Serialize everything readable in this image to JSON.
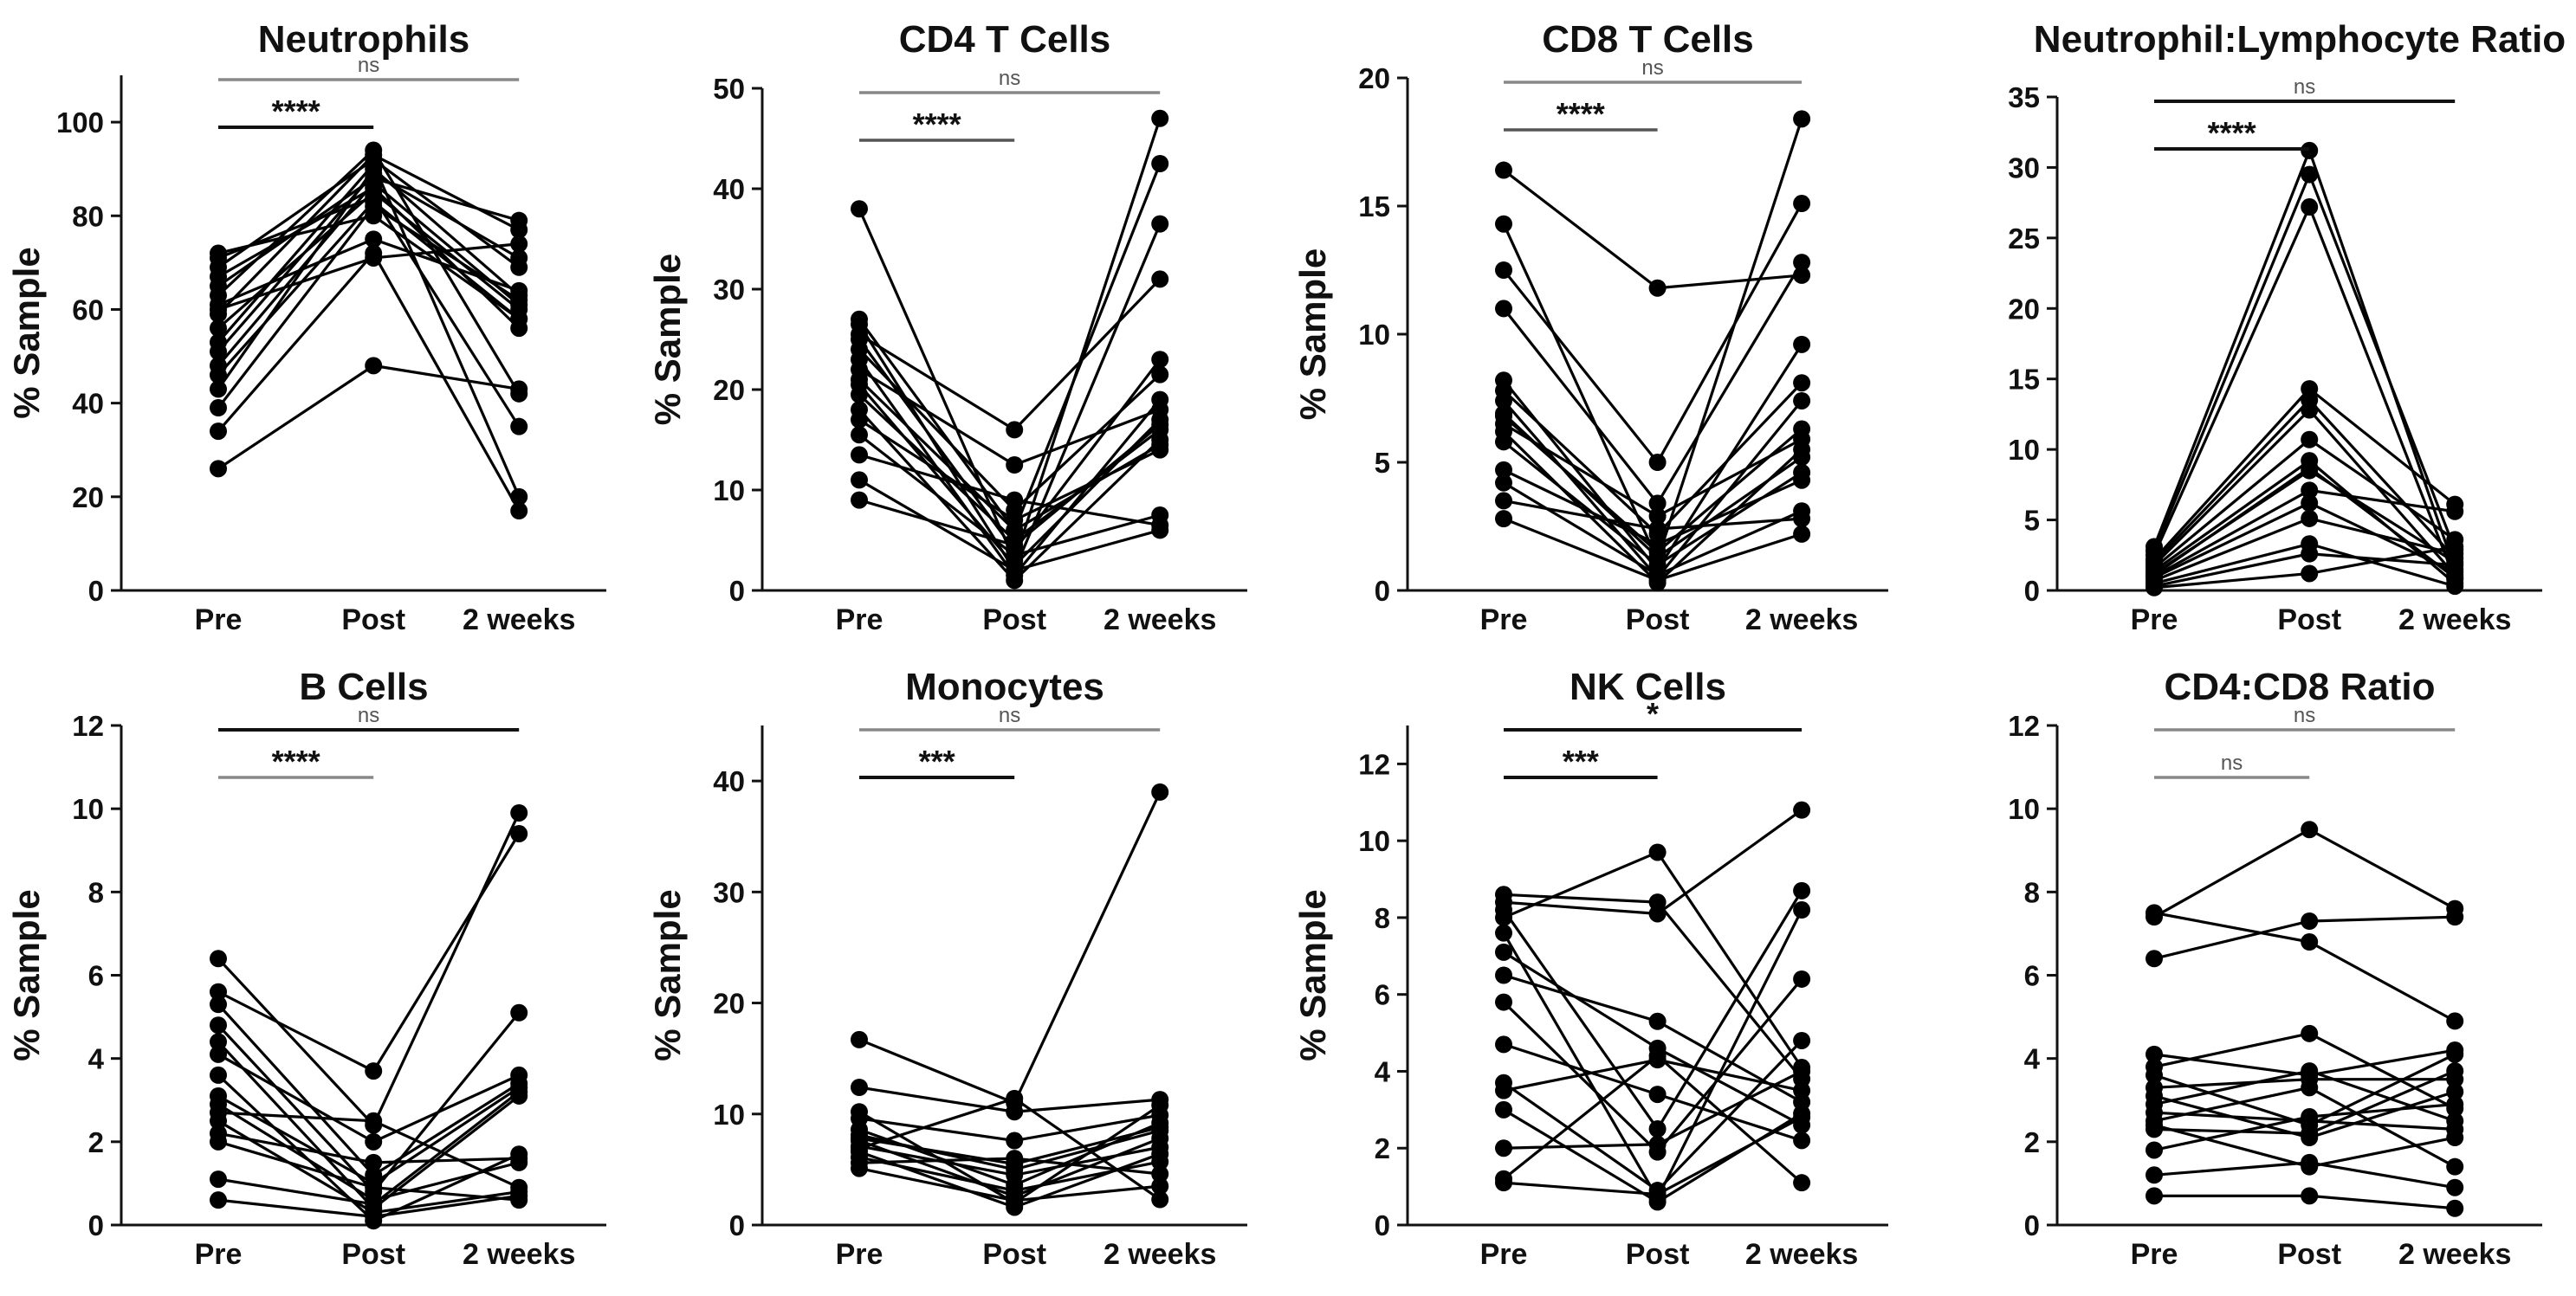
{
  "chart_data": [
    {
      "type": "line",
      "title": "Neutrophils",
      "ylabel": "% Sample",
      "categories": [
        "Pre",
        "Post",
        "2 weeks"
      ],
      "ylim": [
        0,
        110
      ],
      "yticks": [
        0,
        20,
        40,
        60,
        80,
        100
      ],
      "brackets": [
        {
          "from": "Pre",
          "to": "2 weeks",
          "label": "ns",
          "color": "#888888",
          "level": 2
        },
        {
          "from": "Pre",
          "to": "Post",
          "label": "****",
          "color": "#111111",
          "level": 1
        }
      ],
      "series": [
        {
          "values": [
            26,
            48,
            43
          ]
        },
        {
          "values": [
            34,
            72,
            17
          ]
        },
        {
          "values": [
            39,
            82,
            62
          ]
        },
        {
          "values": [
            43,
            90,
            63
          ]
        },
        {
          "values": [
            46,
            83,
            58
          ]
        },
        {
          "values": [
            48,
            87,
            61
          ]
        },
        {
          "values": [
            51,
            89,
            71
          ]
        },
        {
          "values": [
            53,
            91,
            20
          ]
        },
        {
          "values": [
            56,
            85,
            60
          ]
        },
        {
          "values": [
            59,
            93,
            77
          ]
        },
        {
          "values": [
            61,
            75,
            64
          ]
        },
        {
          "values": [
            63,
            94,
            42
          ]
        },
        {
          "values": [
            65,
            88,
            79
          ]
        },
        {
          "values": [
            67,
            86,
            56
          ]
        },
        {
          "values": [
            69,
            92,
            69
          ]
        },
        {
          "values": [
            71,
            84,
            35
          ]
        },
        {
          "values": [
            72,
            80,
            58
          ]
        },
        {
          "values": [
            60,
            71,
            74
          ]
        }
      ]
    },
    {
      "type": "line",
      "title": "CD4 T Cells",
      "ylabel": "% Sample",
      "categories": [
        "Pre",
        "Post",
        "2 weeks"
      ],
      "ylim": [
        0,
        50
      ],
      "yticks": [
        0,
        10,
        20,
        30,
        40,
        50
      ],
      "brackets": [
        {
          "from": "Pre",
          "to": "2 weeks",
          "label": "ns",
          "color": "#888888",
          "level": 2
        },
        {
          "from": "Pre",
          "to": "Post",
          "label": "****",
          "color": "#555555",
          "level": 1
        }
      ],
      "series": [
        {
          "values": [
            38,
            3,
            47
          ]
        },
        {
          "values": [
            27,
            6,
            42.5
          ]
        },
        {
          "values": [
            26.5,
            2,
            36.5
          ]
        },
        {
          "values": [
            25.5,
            16,
            31
          ]
        },
        {
          "values": [
            25,
            4,
            23
          ]
        },
        {
          "values": [
            24,
            8,
            21.5
          ]
        },
        {
          "values": [
            23,
            1.5,
            19
          ]
        },
        {
          "values": [
            22,
            12.5,
            18
          ]
        },
        {
          "values": [
            20.5,
            2.5,
            17
          ]
        },
        {
          "values": [
            19.5,
            5,
            16
          ]
        },
        {
          "values": [
            18,
            1,
            15
          ]
        },
        {
          "values": [
            17,
            7,
            14
          ]
        },
        {
          "values": [
            15.5,
            3.5,
            7.5
          ]
        },
        {
          "values": [
            13.5,
            9,
            6.5
          ]
        },
        {
          "values": [
            11,
            2,
            6
          ]
        },
        {
          "values": [
            9,
            4.5,
            16.5
          ]
        },
        {
          "values": [
            21,
            6,
            14.5
          ]
        }
      ]
    },
    {
      "type": "line",
      "title": "CD8 T Cells",
      "ylabel": "% Sample",
      "categories": [
        "Pre",
        "Post",
        "2 weeks"
      ],
      "ylim": [
        0,
        20
      ],
      "yticks": [
        0,
        5,
        10,
        15,
        20
      ],
      "brackets": [
        {
          "from": "Pre",
          "to": "2 weeks",
          "label": "ns",
          "color": "#888888",
          "level": 2
        },
        {
          "from": "Pre",
          "to": "Post",
          "label": "****",
          "color": "#555555",
          "level": 1
        }
      ],
      "series": [
        {
          "values": [
            16.4,
            11.8,
            12.3
          ]
        },
        {
          "values": [
            14.3,
            1.2,
            18.4
          ]
        },
        {
          "values": [
            12.5,
            5,
            15.1
          ]
        },
        {
          "values": [
            11,
            3.4,
            12.8
          ]
        },
        {
          "values": [
            8.2,
            0.8,
            9.6
          ]
        },
        {
          "values": [
            7.8,
            2.2,
            8.1
          ]
        },
        {
          "values": [
            7.4,
            0.5,
            7.4
          ]
        },
        {
          "values": [
            6.8,
            1.5,
            6.3
          ]
        },
        {
          "values": [
            6.5,
            2.9,
            5.9
          ]
        },
        {
          "values": [
            6.2,
            0.3,
            5.5
          ]
        },
        {
          "values": [
            5.8,
            1,
            4.6
          ]
        },
        {
          "values": [
            4.7,
            1.8,
            4.3
          ]
        },
        {
          "values": [
            4.2,
            0.6,
            3.1
          ]
        },
        {
          "values": [
            3.5,
            2.4,
            2.8
          ]
        },
        {
          "values": [
            2.8,
            0.4,
            2.2
          ]
        },
        {
          "values": [
            6.9,
            1.3,
            5.2
          ]
        }
      ]
    },
    {
      "type": "line",
      "title": "Neutrophil:Lymphocyte Ratio",
      "ylabel": "",
      "categories": [
        "Pre",
        "Post",
        "2 weeks"
      ],
      "ylim": [
        0,
        35
      ],
      "yticks": [
        0,
        5,
        10,
        15,
        20,
        25,
        30,
        35
      ],
      "brackets": [
        {
          "from": "Pre",
          "to": "2 weeks",
          "label": "ns",
          "color": "#111111",
          "level": 2
        },
        {
          "from": "Pre",
          "to": "Post",
          "label": "****",
          "color": "#111111",
          "level": 1
        }
      ],
      "series": [
        {
          "values": [
            3.1,
            31.2,
            1.5
          ]
        },
        {
          "values": [
            2.8,
            29.5,
            2.9
          ]
        },
        {
          "values": [
            2.5,
            27.2,
            0.8
          ]
        },
        {
          "values": [
            2.2,
            14.3,
            6.1
          ]
        },
        {
          "values": [
            2,
            13.5,
            2.3
          ]
        },
        {
          "values": [
            1.8,
            12.8,
            1.1
          ]
        },
        {
          "values": [
            1.6,
            10.7,
            3.6
          ]
        },
        {
          "values": [
            1.4,
            9.2,
            0.5
          ]
        },
        {
          "values": [
            1.2,
            8.5,
            2
          ]
        },
        {
          "values": [
            1,
            7.1,
            5.6
          ]
        },
        {
          "values": [
            0.9,
            6.2,
            1.3
          ]
        },
        {
          "values": [
            0.7,
            5.1,
            2.6
          ]
        },
        {
          "values": [
            0.5,
            3.3,
            0.3
          ]
        },
        {
          "values": [
            0.3,
            2.6,
            1.8
          ]
        },
        {
          "values": [
            0.2,
            1.2,
            3.1
          ]
        },
        {
          "values": [
            1.1,
            8.7,
            0.9
          ]
        }
      ]
    },
    {
      "type": "line",
      "title": "B Cells",
      "ylabel": "% Sample",
      "categories": [
        "Pre",
        "Post",
        "2 weeks"
      ],
      "ylim": [
        0,
        12
      ],
      "yticks": [
        0,
        2,
        4,
        6,
        8,
        10,
        12
      ],
      "brackets": [
        {
          "from": "Pre",
          "to": "2 weeks",
          "label": "ns",
          "color": "#111111",
          "level": 2
        },
        {
          "from": "Pre",
          "to": "Post",
          "label": "****",
          "color": "#888888",
          "level": 1
        }
      ],
      "series": [
        {
          "values": [
            6.4,
            2.4,
            9.9
          ]
        },
        {
          "values": [
            5.6,
            3.7,
            9.4
          ]
        },
        {
          "values": [
            5.3,
            1.2,
            3.4
          ]
        },
        {
          "values": [
            4.8,
            0.8,
            5.1
          ]
        },
        {
          "values": [
            4.4,
            0.4,
            3.1
          ]
        },
        {
          "values": [
            4.1,
            2,
            3.6
          ]
        },
        {
          "values": [
            3.6,
            0.1,
            1.7
          ]
        },
        {
          "values": [
            3.1,
            1,
            3.3
          ]
        },
        {
          "values": [
            2.9,
            0.6,
            1.5
          ]
        },
        {
          "values": [
            2.7,
            2.5,
            0.9
          ]
        },
        {
          "values": [
            2.5,
            0.3,
            0.8
          ]
        },
        {
          "values": [
            2.2,
            1.5,
            1.6
          ]
        },
        {
          "values": [
            2,
            0.9,
            0.6
          ]
        },
        {
          "values": [
            1.1,
            0.5,
            3.2
          ]
        },
        {
          "values": [
            0.6,
            0.2,
            0.7
          ]
        }
      ]
    },
    {
      "type": "line",
      "title": "Monocytes",
      "ylabel": "% Sample",
      "categories": [
        "Pre",
        "Post",
        "2 weeks"
      ],
      "ylim": [
        0,
        45
      ],
      "yticks": [
        0,
        10,
        20,
        30,
        40
      ],
      "brackets": [
        {
          "from": "Pre",
          "to": "2 weeks",
          "label": "ns",
          "color": "#888888",
          "level": 2
        },
        {
          "from": "Pre",
          "to": "Post",
          "label": "***",
          "color": "#111111",
          "level": 1
        }
      ],
      "series": [
        {
          "values": [
            16.7,
            11,
            39
          ]
        },
        {
          "values": [
            12.4,
            10.2,
            11.3
          ]
        },
        {
          "values": [
            10.2,
            2,
            10.8
          ]
        },
        {
          "values": [
            9.6,
            7.6,
            9.9
          ]
        },
        {
          "values": [
            8.6,
            3.6,
            9.2
          ]
        },
        {
          "values": [
            8.1,
            5,
            8.5
          ]
        },
        {
          "values": [
            7.6,
            2.6,
            7.8
          ]
        },
        {
          "values": [
            7.1,
            4.5,
            7
          ]
        },
        {
          "values": [
            6.6,
            1.6,
            6.4
          ]
        },
        {
          "values": [
            6.1,
            3.1,
            5.7
          ]
        },
        {
          "values": [
            5.6,
            6,
            4.6
          ]
        },
        {
          "values": [
            5.1,
            2.2,
            3.5
          ]
        },
        {
          "values": [
            6.9,
            11.4,
            2.3
          ]
        },
        {
          "values": [
            7.8,
            5.5,
            8.8
          ]
        }
      ]
    },
    {
      "type": "line",
      "title": "NK Cells",
      "ylabel": "% Sample",
      "categories": [
        "Pre",
        "Post",
        "2 weeks"
      ],
      "ylim": [
        0,
        13
      ],
      "yticks": [
        0,
        2,
        4,
        6,
        8,
        10,
        12
      ],
      "brackets": [
        {
          "from": "Pre",
          "to": "2 weeks",
          "label": "*",
          "color": "#111111",
          "level": 2
        },
        {
          "from": "Pre",
          "to": "Post",
          "label": "***",
          "color": "#111111",
          "level": 1
        }
      ],
      "series": [
        {
          "values": [
            8.6,
            8.4,
            3.8
          ]
        },
        {
          "values": [
            8.4,
            8.1,
            10.8
          ]
        },
        {
          "values": [
            8.2,
            2.5,
            8.7
          ]
        },
        {
          "values": [
            8,
            9.7,
            4.1
          ]
        },
        {
          "values": [
            7.6,
            0.7,
            8.2
          ]
        },
        {
          "values": [
            7.1,
            4.6,
            2.6
          ]
        },
        {
          "values": [
            6.5,
            5.3,
            3.2
          ]
        },
        {
          "values": [
            5.8,
            1.9,
            6.4
          ]
        },
        {
          "values": [
            4.7,
            3.4,
            2.2
          ]
        },
        {
          "values": [
            3.7,
            0.9,
            4.8
          ]
        },
        {
          "values": [
            3.5,
            4.3,
            3.5
          ]
        },
        {
          "values": [
            3,
            0.6,
            2.9
          ]
        },
        {
          "values": [
            2,
            2.1,
            4
          ]
        },
        {
          "values": [
            1.2,
            4.4,
            1.1
          ]
        },
        {
          "values": [
            1.1,
            0.8,
            2.8
          ]
        }
      ]
    },
    {
      "type": "line",
      "title": "CD4:CD8 Ratio",
      "ylabel": "",
      "categories": [
        "Pre",
        "Post",
        "2 weeks"
      ],
      "ylim": [
        0,
        12
      ],
      "yticks": [
        0,
        2,
        4,
        6,
        8,
        10,
        12
      ],
      "brackets": [
        {
          "from": "Pre",
          "to": "2 weeks",
          "label": "ns",
          "color": "#888888",
          "level": 2
        },
        {
          "from": "Pre",
          "to": "Post",
          "label": "ns",
          "color": "#888888",
          "level": 1
        }
      ],
      "series": [
        {
          "values": [
            7.4,
            9.5,
            7.6
          ]
        },
        {
          "values": [
            7.5,
            6.8,
            4.9
          ]
        },
        {
          "values": [
            6.4,
            7.3,
            7.4
          ]
        },
        {
          "values": [
            4.1,
            3.6,
            4.2
          ]
        },
        {
          "values": [
            3.8,
            4.6,
            2.8
          ]
        },
        {
          "values": [
            3.6,
            2.4,
            4.1
          ]
        },
        {
          "values": [
            3.3,
            3.5,
            3.5
          ]
        },
        {
          "values": [
            3.1,
            2.1,
            3.2
          ]
        },
        {
          "values": [
            2.9,
            3.7,
            2.5
          ]
        },
        {
          "values": [
            2.7,
            2.5,
            2.3
          ]
        },
        {
          "values": [
            2.5,
            3.3,
            1.4
          ]
        },
        {
          "values": [
            2.4,
            1.4,
            2.1
          ]
        },
        {
          "values": [
            2.3,
            2.2,
            3.7
          ]
        },
        {
          "values": [
            1.8,
            2.6,
            2.9
          ]
        },
        {
          "values": [
            1.2,
            1.5,
            0.9
          ]
        },
        {
          "values": [
            0.7,
            0.7,
            0.4
          ]
        }
      ]
    }
  ]
}
